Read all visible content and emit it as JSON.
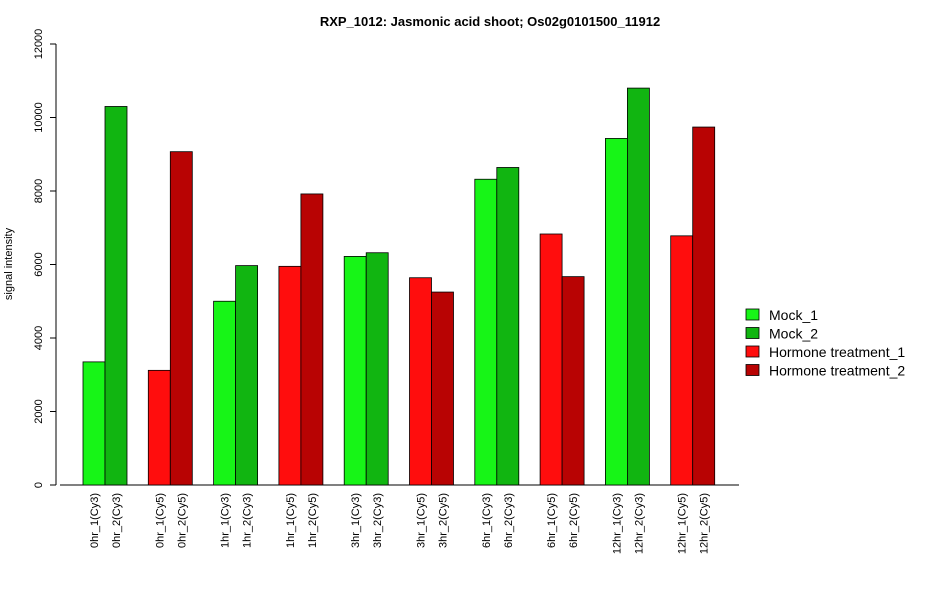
{
  "chart_data": {
    "type": "bar",
    "title": "RXP_1012: Jasmonic acid shoot; Os02g0101500_11912",
    "xlabel": "",
    "ylabel": "signal intensity",
    "ylim": [
      0,
      12000
    ],
    "yticks": [
      0,
      2000,
      4000,
      6000,
      8000,
      10000,
      12000
    ],
    "grid": false,
    "legend_position": "right",
    "groups": [
      {
        "bars": [
          {
            "label": "0hr_1(Cy3)",
            "value": 3350,
            "series": "Mock_1"
          },
          {
            "label": "0hr_2(Cy3)",
            "value": 10300,
            "series": "Mock_2"
          }
        ]
      },
      {
        "bars": [
          {
            "label": "0hr_1(Cy5)",
            "value": 3120,
            "series": "Hormone treatment_1"
          },
          {
            "label": "0hr_2(Cy5)",
            "value": 9070,
            "series": "Hormone treatment_2"
          }
        ]
      },
      {
        "bars": [
          {
            "label": "1hr_1(Cy3)",
            "value": 5000,
            "series": "Mock_1"
          },
          {
            "label": "1hr_2(Cy3)",
            "value": 5970,
            "series": "Mock_2"
          }
        ]
      },
      {
        "bars": [
          {
            "label": "1hr_1(Cy5)",
            "value": 5950,
            "series": "Hormone treatment_1"
          },
          {
            "label": "1hr_2(Cy5)",
            "value": 7920,
            "series": "Hormone treatment_2"
          }
        ]
      },
      {
        "bars": [
          {
            "label": "3hr_1(Cy3)",
            "value": 6220,
            "series": "Mock_1"
          },
          {
            "label": "3hr_2(Cy3)",
            "value": 6320,
            "series": "Mock_2"
          }
        ]
      },
      {
        "bars": [
          {
            "label": "3hr_1(Cy5)",
            "value": 5640,
            "series": "Hormone treatment_1"
          },
          {
            "label": "3hr_2(Cy5)",
            "value": 5250,
            "series": "Hormone treatment_2"
          }
        ]
      },
      {
        "bars": [
          {
            "label": "6hr_1(Cy3)",
            "value": 8320,
            "series": "Mock_1"
          },
          {
            "label": "6hr_2(Cy3)",
            "value": 8640,
            "series": "Mock_2"
          }
        ]
      },
      {
        "bars": [
          {
            "label": "6hr_1(Cy5)",
            "value": 6830,
            "series": "Hormone treatment_1"
          },
          {
            "label": "6hr_2(Cy5)",
            "value": 5670,
            "series": "Hormone treatment_2"
          }
        ]
      },
      {
        "bars": [
          {
            "label": "12hr_1(Cy3)",
            "value": 9430,
            "series": "Mock_1"
          },
          {
            "label": "12hr_2(Cy3)",
            "value": 10800,
            "series": "Mock_2"
          }
        ]
      },
      {
        "bars": [
          {
            "label": "12hr_1(Cy5)",
            "value": 6780,
            "series": "Hormone treatment_1"
          },
          {
            "label": "12hr_2(Cy5)",
            "value": 9740,
            "series": "Hormone treatment_2"
          }
        ]
      }
    ],
    "legend": [
      {
        "name": "Mock_1",
        "color": "#17f517"
      },
      {
        "name": "Mock_2",
        "color": "#11b511"
      },
      {
        "name": "Hormone treatment_1",
        "color": "#ff0d0d"
      },
      {
        "name": "Hormone treatment_2",
        "color": "#b80303"
      }
    ]
  }
}
